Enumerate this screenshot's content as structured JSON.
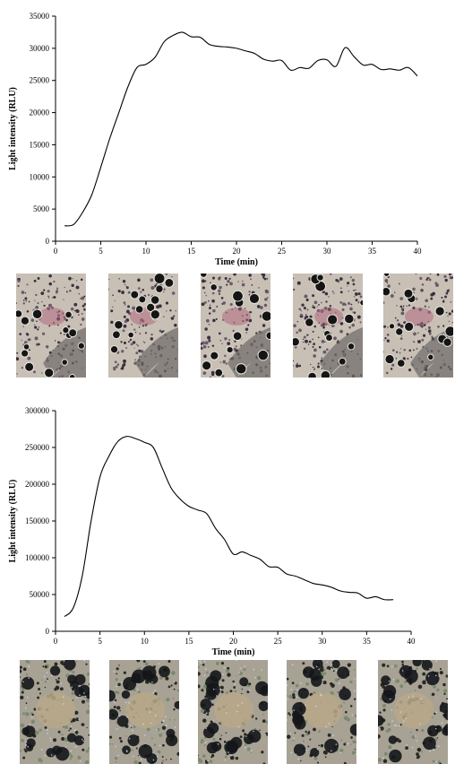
{
  "chart_data": [
    {
      "type": "line",
      "xlabel": "Time (min)",
      "ylabel": "Light intensity (RLU)",
      "xlim": [
        0,
        40
      ],
      "ylim": [
        0,
        35000
      ],
      "xticks": [
        0,
        5,
        10,
        15,
        20,
        25,
        30,
        35,
        40
      ],
      "yticks": [
        0,
        5000,
        10000,
        15000,
        20000,
        25000,
        30000,
        35000
      ],
      "grid": false,
      "series": [
        {
          "x": [
            1,
            2,
            3,
            4,
            5,
            6,
            7,
            8,
            9,
            10,
            11,
            12,
            13,
            14,
            15,
            16,
            17,
            18,
            19,
            20,
            21,
            22,
            23,
            24,
            25,
            26,
            27,
            28,
            29,
            30,
            31,
            32,
            33,
            34,
            35,
            36,
            37,
            38,
            39,
            40
          ],
          "y": [
            2400,
            2600,
            4500,
            7200,
            11500,
            16000,
            20000,
            24000,
            27000,
            27500,
            28600,
            31000,
            32000,
            32500,
            31800,
            31700,
            30600,
            30300,
            30200,
            30000,
            29600,
            29200,
            28300,
            28000,
            28100,
            26600,
            27000,
            26900,
            28100,
            28200,
            27200,
            30100,
            28700,
            27400,
            27500,
            26700,
            26800,
            26600,
            27000,
            25700
          ]
        }
      ]
    },
    {
      "type": "line",
      "xlabel": "Time (min)",
      "ylabel": "Light intensity (RLU)",
      "xlim": [
        0,
        40
      ],
      "ylim": [
        0,
        300000
      ],
      "xticks": [
        0,
        5,
        10,
        15,
        20,
        25,
        30,
        35,
        40
      ],
      "yticks": [
        0,
        50000,
        100000,
        150000,
        200000,
        250000,
        300000
      ],
      "grid": false,
      "series": [
        {
          "x": [
            1,
            2,
            3,
            4,
            5,
            6,
            7,
            8,
            9,
            10,
            11,
            12,
            13,
            14,
            15,
            16,
            17,
            18,
            19,
            20,
            21,
            22,
            23,
            24,
            25,
            26,
            27,
            28,
            29,
            30,
            31,
            32,
            33,
            34,
            35,
            36,
            37,
            38
          ],
          "y": [
            20000,
            32000,
            75000,
            150000,
            210000,
            238000,
            258000,
            265000,
            262000,
            257000,
            250000,
            222000,
            195000,
            180000,
            170000,
            165000,
            160000,
            140000,
            125000,
            105000,
            108000,
            103000,
            98000,
            88000,
            87000,
            78000,
            75000,
            70000,
            65000,
            63000,
            60000,
            55000,
            53000,
            52000,
            45000,
            47000,
            43000,
            43000
          ]
        }
      ]
    }
  ],
  "colors": {
    "photo_set_1": "#c8c0b5",
    "photo_set_2": "#a8a295"
  }
}
